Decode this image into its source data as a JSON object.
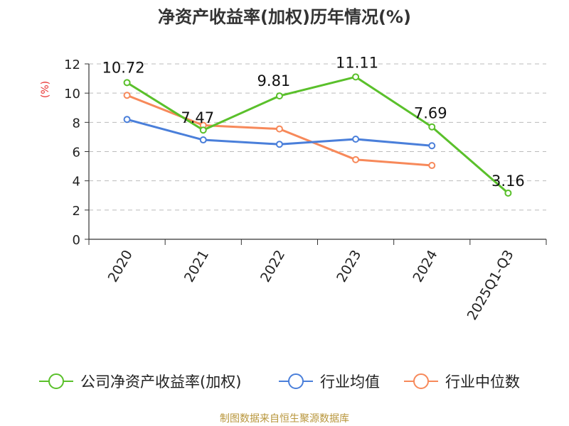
{
  "chart_data": {
    "type": "line",
    "title": "净资产收益率(加权)历年情况(%)",
    "ylabel": "(%)",
    "xlabel": "",
    "categories": [
      "2020",
      "2021",
      "2022",
      "2023",
      "2024",
      "2025Q1-Q3"
    ],
    "ylim": [
      0,
      12
    ],
    "yticks": [
      0,
      2,
      4,
      6,
      8,
      10,
      12
    ],
    "grid": true,
    "legend_position": "bottom",
    "series": [
      {
        "name": "公司净资产收益率(加权)",
        "color": "#5ac02b",
        "values": [
          10.72,
          7.47,
          9.81,
          11.11,
          7.69,
          3.16
        ],
        "labels": [
          "10.72",
          "7.47",
          "9.81",
          "11.11",
          "7.69",
          "3.16"
        ]
      },
      {
        "name": "行业均值",
        "color": "#4a7fda",
        "values": [
          8.2,
          6.8,
          6.5,
          6.85,
          6.4,
          null
        ]
      },
      {
        "name": "行业中位数",
        "color": "#f7895a",
        "values": [
          9.85,
          7.8,
          7.55,
          5.45,
          5.05,
          null
        ]
      }
    ],
    "source": "制图数据来自恒生聚源数据库"
  },
  "colors": {
    "ylabel": "#e8312f",
    "source": "#b8963c",
    "axis": "#333333",
    "grid": "#bbbbbb"
  }
}
